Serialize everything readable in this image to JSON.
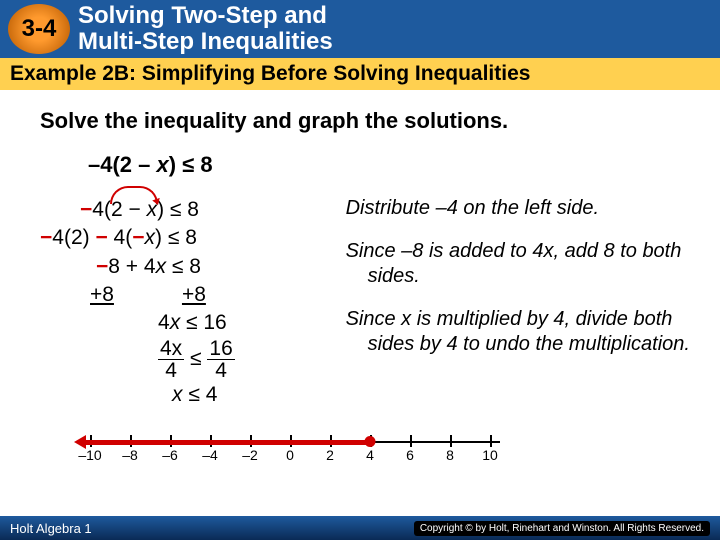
{
  "header": {
    "badge": "3-4",
    "title_l1": "Solving Two-Step and",
    "title_l2": "Multi-Step Inequalities"
  },
  "example_bar": "Example 2B: Simplifying Before Solving Inequalities",
  "instruction": "Solve the inequality and graph the solutions.",
  "problem": {
    "lead": "–4(2 – ",
    "var": "x",
    "tail": ") ≤ 8"
  },
  "work": {
    "l1a": "−",
    "l1b": "4",
    "l1c": "(2 − ",
    "l1d": "x",
    "l1e": ") ≤ 8",
    "l2a": "−",
    "l2b": "4(2) ",
    "l2c": "−",
    "l2d": " 4(",
    "l2e": "−",
    "l2f": "x",
    "l2g": ") ≤ 8",
    "l3a": "−",
    "l3b": "8 + 4",
    "l3c": "x",
    "l3d": " ≤ 8",
    "l4a": "+8",
    "l4b": "+8",
    "l5a": "4",
    "l5b": "x",
    "l5c": " ≤ 16",
    "l6_top_l": "4x",
    "l6_bot_l": "4",
    "l6_mid": " ≤ ",
    "l6_top_r": "16",
    "l6_bot_r": "4",
    "l7a": "x",
    "l7b": " ≤ 4"
  },
  "explain": {
    "p1": "Distribute –4 on the left side.",
    "p2": "Since –8 is added to 4x, add 8 to both sides.",
    "p3": "Since x is multiplied by 4, divide both sides by 4 to undo the multiplication."
  },
  "numberline": {
    "min": -10,
    "max": 10,
    "step": 2,
    "labels": [
      "–10",
      "–8",
      "–6",
      "–4",
      "–2",
      "0",
      "2",
      "4",
      "6",
      "8",
      "10"
    ],
    "solution_at": 4,
    "direction": "left",
    "ray_color": "#d00000"
  },
  "footer": {
    "book": "Holt Algebra 1",
    "copyright": "Copyright © by Holt, Rinehart and Winston. All Rights Reserved."
  }
}
